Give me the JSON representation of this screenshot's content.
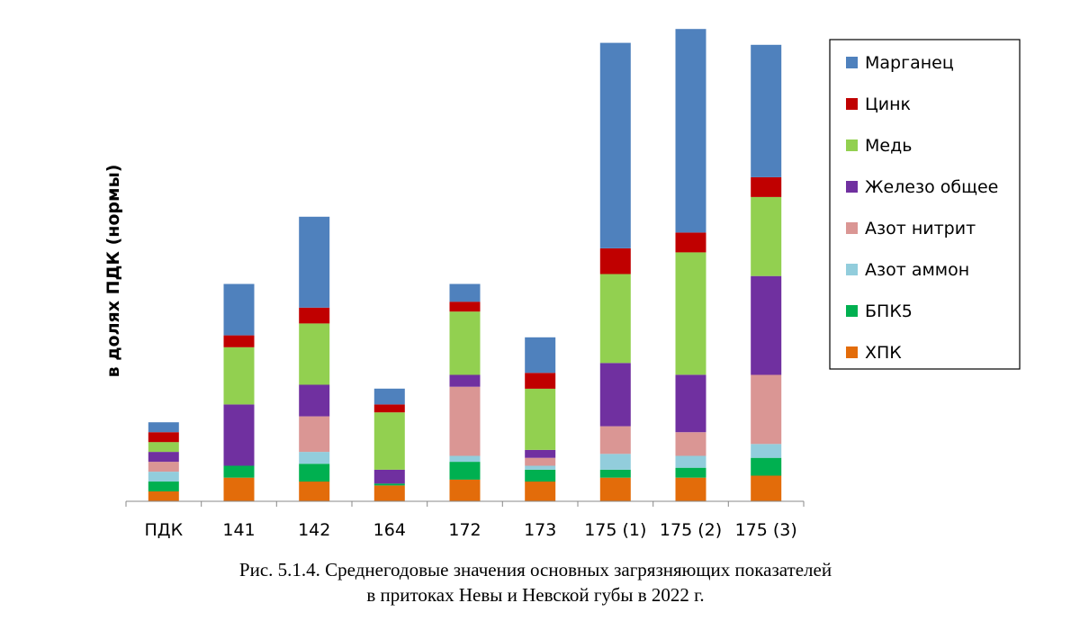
{
  "chart_data": {
    "type": "bar",
    "stacked": true,
    "ylabel": "в долях ПДК (нормы)",
    "xlabel": "",
    "ylim": [
      0,
      23
    ],
    "axis_y_visible": false,
    "grid": false,
    "legend_position": "right",
    "categories": [
      "ПДК",
      "141",
      "142",
      "164",
      "172",
      "173",
      "175 (1)",
      "175 (2)",
      "175 (3)"
    ],
    "series": [
      {
        "name": "ХПК",
        "color": "#E36C0A",
        "values": [
          0.5,
          1.2,
          1.0,
          0.8,
          1.1,
          1.0,
          1.2,
          1.2,
          1.3
        ]
      },
      {
        "name": "БПК5",
        "color": "#00B050",
        "values": [
          0.5,
          0.6,
          0.9,
          0.1,
          0.9,
          0.6,
          0.4,
          0.5,
          0.9
        ]
      },
      {
        "name": "Азот аммон",
        "color": "#92CDDC",
        "values": [
          0.5,
          0.0,
          0.6,
          0.0,
          0.3,
          0.2,
          0.8,
          0.6,
          0.7
        ]
      },
      {
        "name": "Азот нитрит",
        "color": "#DA9694",
        "values": [
          0.5,
          0.0,
          1.8,
          0.0,
          3.5,
          0.4,
          1.4,
          1.2,
          3.5
        ]
      },
      {
        "name": "Железо общее",
        "color": "#7030A0",
        "values": [
          0.5,
          3.1,
          1.6,
          0.7,
          0.6,
          0.4,
          3.2,
          2.9,
          5.0
        ]
      },
      {
        "name": "Медь",
        "color": "#92D050",
        "values": [
          0.5,
          2.9,
          3.1,
          2.9,
          3.2,
          3.1,
          4.5,
          6.2,
          4.0
        ]
      },
      {
        "name": "Цинк",
        "color": "#C00000",
        "values": [
          0.5,
          0.6,
          0.8,
          0.4,
          0.5,
          0.8,
          1.3,
          1.0,
          1.0
        ]
      },
      {
        "name": "Марганец",
        "color": "#4F81BD",
        "values": [
          0.5,
          2.6,
          4.6,
          0.8,
          0.9,
          1.8,
          10.4,
          10.3,
          6.7
        ]
      }
    ]
  },
  "caption": {
    "line1": "Рис. 5.1.4. Среднегодовые значения основных загрязняющих показателей",
    "line2": "в притоках Невы и Невской губы в 2022 г."
  }
}
